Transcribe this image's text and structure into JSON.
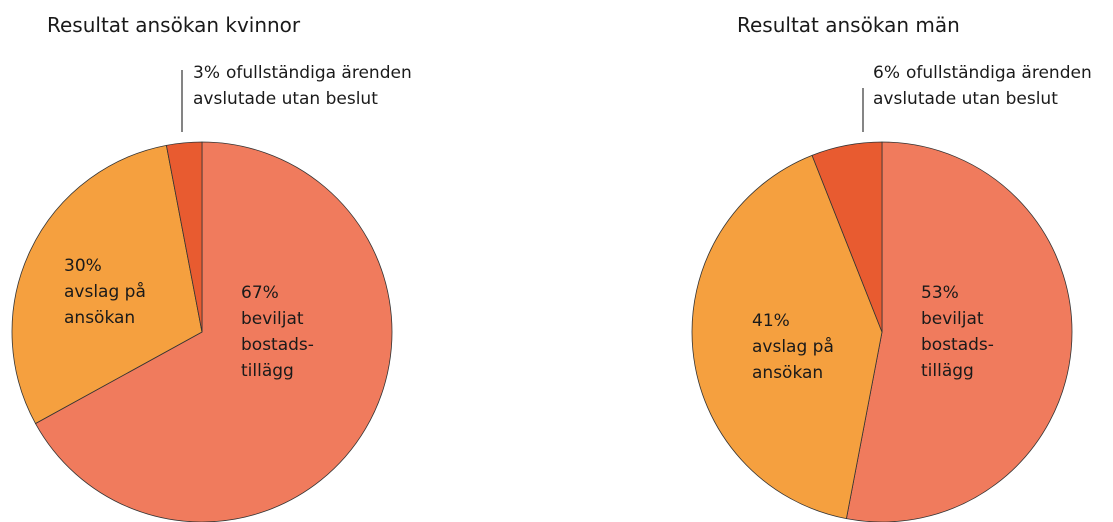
{
  "chart_data": [
    {
      "type": "pie",
      "title": "Resultat ansökan kvinnor",
      "categories": [
        "beviljat\nbostads-\ntillägg",
        "avslag på\nansökan",
        "ofullständiga ärenden\navslutade utan beslut"
      ],
      "values": [
        67,
        30,
        3
      ],
      "value_labels": [
        "67%",
        "30%",
        "3%"
      ],
      "colors": [
        "#f07b5d",
        "#f5a03f",
        "#e85b30"
      ]
    },
    {
      "type": "pie",
      "title": "Resultat ansökan män",
      "categories": [
        "beviljat\nbostads-\ntillägg",
        "avslag på\nansökan",
        "ofullständiga ärenden\navslutade utan beslut"
      ],
      "values": [
        53,
        41,
        6
      ],
      "value_labels": [
        "53%",
        "41%",
        "6%"
      ],
      "colors": [
        "#f07b5d",
        "#f5a03f",
        "#e85b30"
      ]
    }
  ]
}
